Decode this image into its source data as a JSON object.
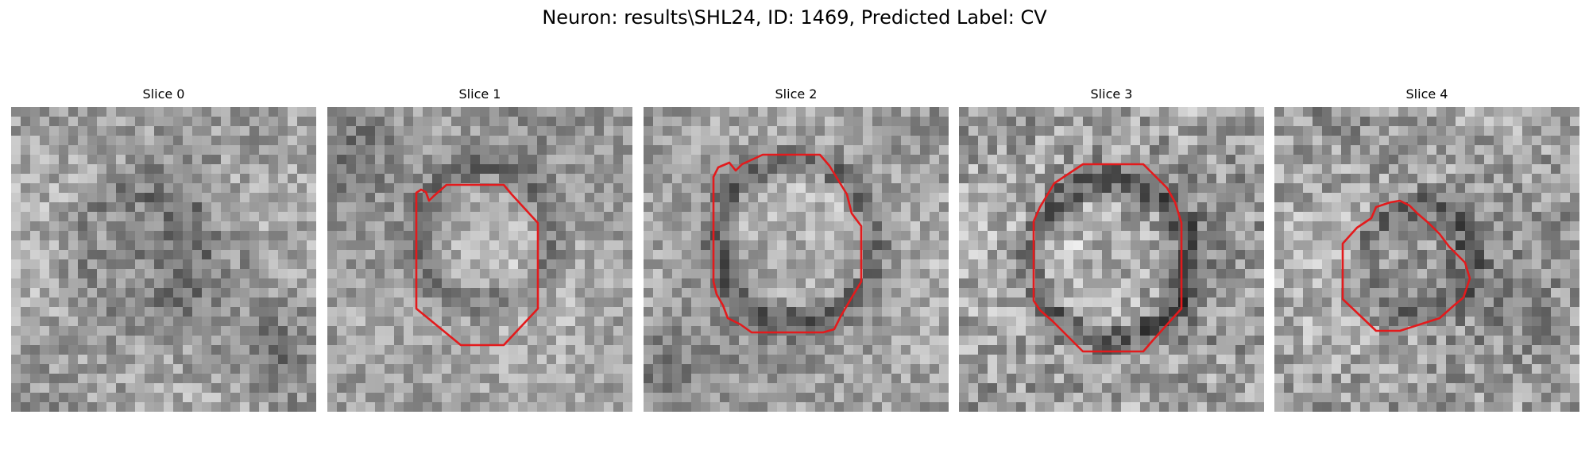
{
  "figure": {
    "title": "Neuron: results\\SHL24, ID: 1469, Predicted Label: CV"
  },
  "panels": [
    {
      "title": "Slice 0",
      "has_contour": false
    },
    {
      "title": "Slice 1",
      "has_contour": true
    },
    {
      "title": "Slice 2",
      "has_contour": true
    },
    {
      "title": "Slice 3",
      "has_contour": true
    },
    {
      "title": "Slice 4",
      "has_contour": true
    }
  ],
  "colors": {
    "contour": "#e31a1c",
    "background": "#ffffff",
    "colormap": "gray"
  }
}
